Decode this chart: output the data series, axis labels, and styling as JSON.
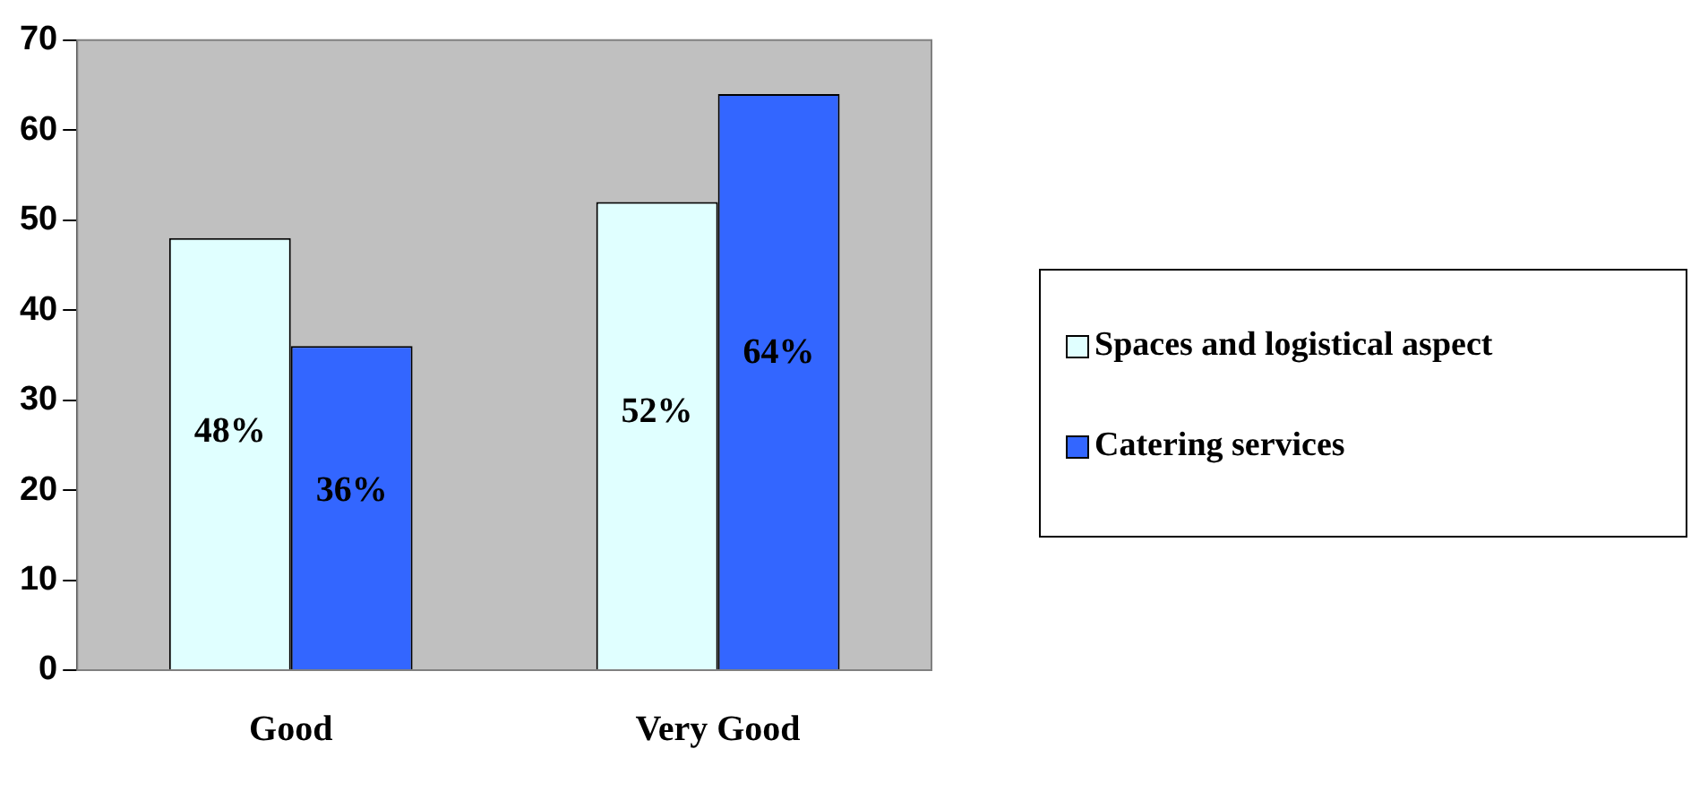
{
  "chart_data": {
    "type": "bar",
    "categories": [
      "Good",
      "Very Good"
    ],
    "series": [
      {
        "name": "Spaces and logistical aspect",
        "color": "#e0ffff",
        "values": [
          48,
          52
        ],
        "value_labels": [
          "48%",
          "52%"
        ]
      },
      {
        "name": "Catering services",
        "color": "#3366ff",
        "values": [
          36,
          64
        ],
        "value_labels": [
          "36%",
          "64%"
        ]
      }
    ],
    "ylim": [
      0,
      70
    ],
    "yticks": [
      0,
      10,
      20,
      30,
      40,
      50,
      60,
      70
    ],
    "grid": false,
    "legend": "right"
  }
}
